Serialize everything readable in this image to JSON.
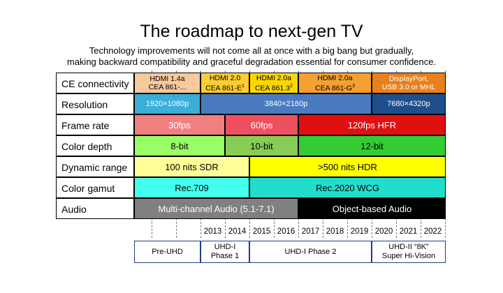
{
  "title": "The roadmap to next-gen TV",
  "subtitle": [
    "Technology improvements will not come all at once with a big bang but gradually,",
    "making backward  compatibility and graceful degradation essential for consumer confidence."
  ],
  "rows": {
    "connectivity": "CE connectivity",
    "resolution": "Resolution",
    "frame_rate": "Frame rate",
    "color_depth": "Color depth",
    "dynamic_range": "Dynamic range",
    "color_gamut": "Color gamut",
    "audio": "Audio"
  },
  "connectivity": [
    {
      "line1": "HDMI 1.4a",
      "line2": "CEA 861-...",
      "color": "#f8c99a"
    },
    {
      "line1": "HDMI 2.0",
      "line2": "CEA 861-E",
      "sup": "1",
      "color": "#ffcc33"
    },
    {
      "line1": "HDMI 2.0a",
      "line2": "CEA 861.3",
      "sup": "2",
      "color": "#ffd700"
    },
    {
      "line1": "HDMI 2.0a",
      "line2": "CEA 861-G",
      "sup": "3",
      "color": "#f5a030"
    },
    {
      "line1": "DisplayPort,",
      "line2": "USB 3.0 or MHL",
      "color": "#e8801c"
    }
  ],
  "resolution": [
    {
      "label": "1920×1080p",
      "color": "#3aaed8"
    },
    {
      "label": "3840×2160p",
      "color": "#4a7bc0"
    },
    {
      "label": "7680×4320p",
      "color": "#1f4e8c"
    }
  ],
  "frame_rate": [
    {
      "label": "30fps",
      "color": "#f08080"
    },
    {
      "label": "60fps",
      "color": "#ee5060"
    },
    {
      "label": "120fps HFR",
      "color": "#e01010"
    }
  ],
  "color_depth": [
    {
      "label": "8-bit",
      "color": "#99ff66"
    },
    {
      "label": "10-bit",
      "color": "#88cc55"
    },
    {
      "label": "12-bit",
      "color": "#33cc33"
    }
  ],
  "dynamic_range": [
    {
      "label": "100 nits SDR",
      "color": "#ffff99"
    },
    {
      "label": ">500 nits HDR",
      "color": "#ffff00"
    }
  ],
  "color_gamut": [
    {
      "label": "Rec.709",
      "color": "#44ffee"
    },
    {
      "label": "Rec.2020 WCG",
      "color": "#22ddcc"
    }
  ],
  "audio": [
    {
      "label": "Multi-channel Audio (5.1-7.1)",
      "color": "#808080"
    },
    {
      "label": "Object-based Audio",
      "color": "#000000"
    }
  ],
  "years": [
    "2013",
    "2014",
    "2015",
    "2016",
    "2017",
    "2018",
    "2019",
    "2020",
    "2021",
    "2022"
  ],
  "phases": [
    {
      "line1": "Pre-UHD",
      "line2": ""
    },
    {
      "line1": "UHD-I",
      "line2": "Phase 1"
    },
    {
      "line1": "UHD-I Phase 2",
      "line2": ""
    },
    {
      "line1": "UHD-II “8K”",
      "line2": "Super Hi-Vision"
    }
  ]
}
